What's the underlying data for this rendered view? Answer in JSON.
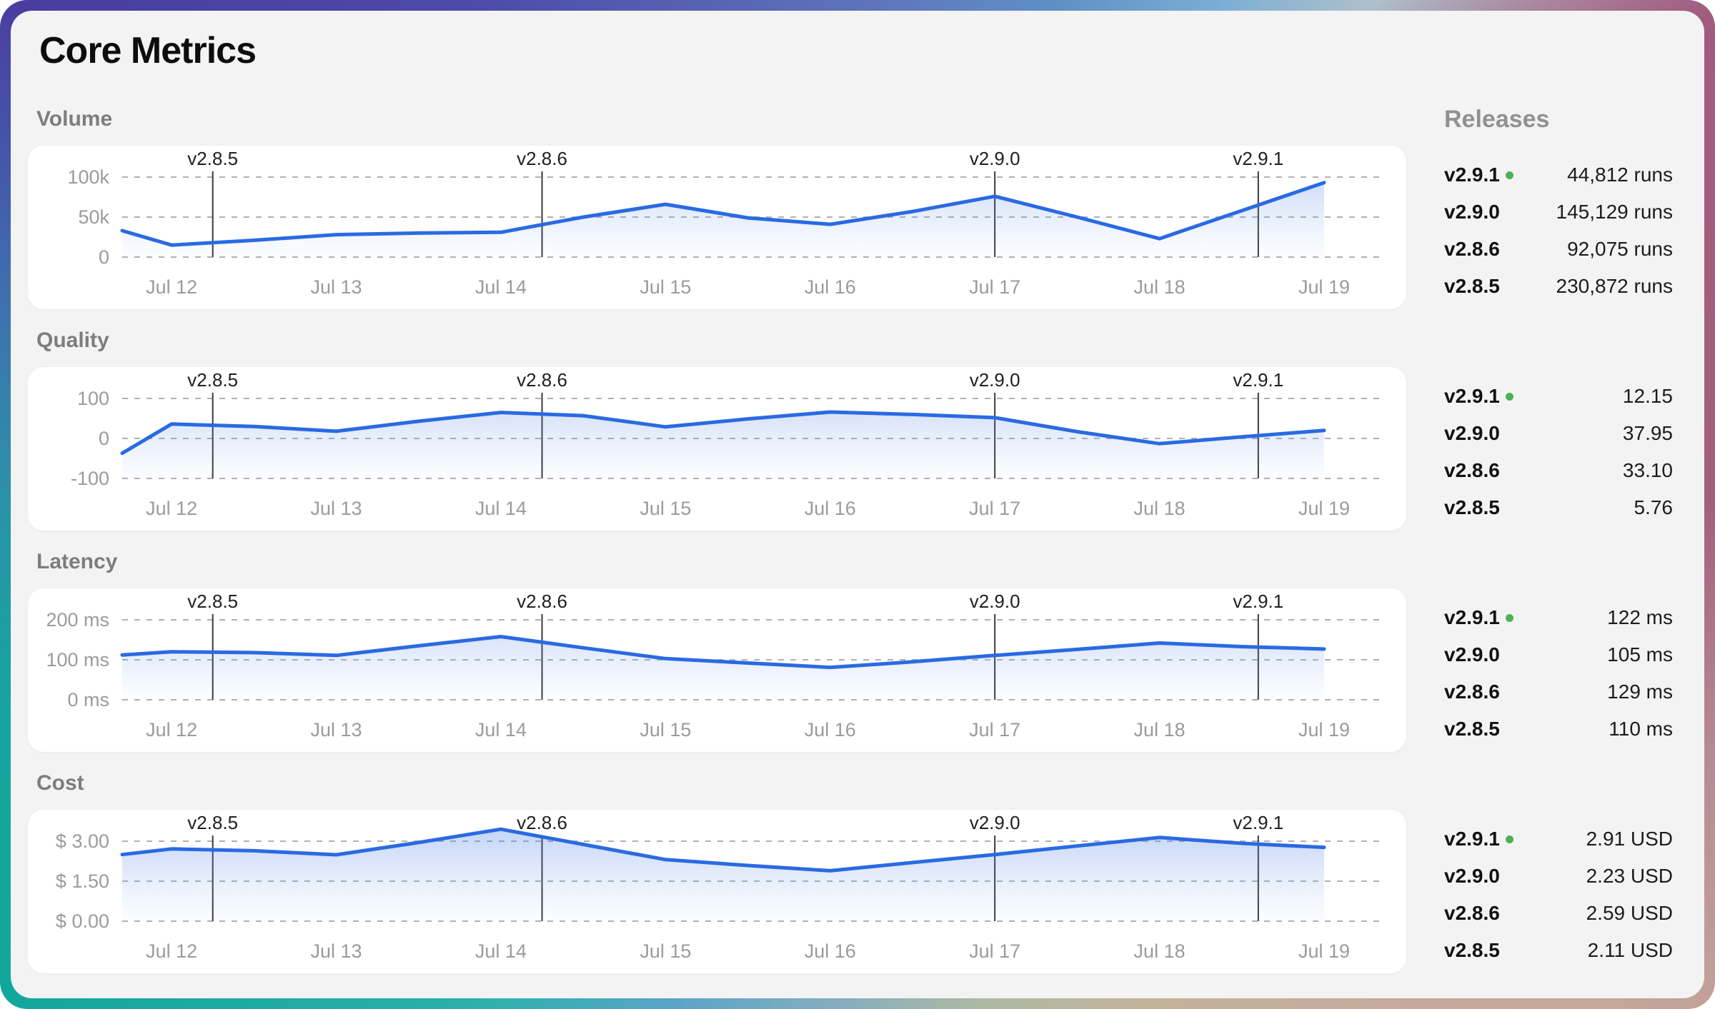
{
  "title": "Core Metrics",
  "releases_header": "Releases",
  "day_labels": [
    "Jul 12",
    "Jul 13",
    "Jul 14",
    "Jul 15",
    "Jul 16",
    "Jul 17",
    "Jul 18",
    "Jul 19"
  ],
  "release_markers": [
    {
      "label": "v2.8.5",
      "day": 0.25
    },
    {
      "label": "v2.8.6",
      "day": 2.25
    },
    {
      "label": "v2.9.0",
      "day": 5.0
    },
    {
      "label": "v2.9.1",
      "day": 6.6
    }
  ],
  "colors": {
    "line": "#2a6ae2",
    "area_top": "rgba(64,118,226,0.30)",
    "area_bottom": "rgba(120,160,240,0.02)",
    "grid": "#b0b0b2",
    "marker_line": "#3a3a3a",
    "latest_dot": "#4db153"
  },
  "chart_data": [
    {
      "type": "area",
      "title": "Volume",
      "unit": "runs",
      "ylim": [
        0,
        100000
      ],
      "y_ticks": [
        {
          "label": "100k",
          "value": 100000
        },
        {
          "label": "50k",
          "value": 50000
        },
        {
          "label": "0",
          "value": 0
        }
      ],
      "x_days": [
        -0.3,
        0,
        0.5,
        1,
        1.5,
        2,
        2.5,
        3,
        3.5,
        4,
        4.5,
        5,
        5.5,
        6,
        6.5,
        7
      ],
      "values": [
        33000,
        15000,
        21000,
        28000,
        30000,
        31000,
        50000,
        66000,
        49000,
        41000,
        57000,
        76000,
        50000,
        23000,
        58000,
        93000
      ],
      "panel": [
        {
          "version": "v2.9.1",
          "value": "44,812 runs",
          "latest": true
        },
        {
          "version": "v2.9.0",
          "value": "145,129 runs",
          "latest": false
        },
        {
          "version": "v2.8.6",
          "value": "92,075 runs",
          "latest": false
        },
        {
          "version": "v2.8.5",
          "value": "230,872 runs",
          "latest": false
        }
      ]
    },
    {
      "type": "area",
      "title": "Quality",
      "unit": "",
      "ylim": [
        -100,
        100
      ],
      "y_ticks": [
        {
          "label": "100",
          "value": 100
        },
        {
          "label": "0",
          "value": 0
        },
        {
          "label": "-100",
          "value": -100
        }
      ],
      "x_days": [
        -0.3,
        0,
        0.5,
        1,
        1.5,
        2,
        2.5,
        3,
        3.5,
        4,
        4.5,
        5,
        5.5,
        6,
        6.5,
        7
      ],
      "values": [
        -37,
        36,
        30,
        18,
        43,
        65,
        57,
        29,
        49,
        66,
        60,
        52,
        17,
        -13,
        4,
        20
      ],
      "panel": [
        {
          "version": "v2.9.1",
          "value": "12.15",
          "latest": true
        },
        {
          "version": "v2.9.0",
          "value": "37.95",
          "latest": false
        },
        {
          "version": "v2.8.6",
          "value": "33.10",
          "latest": false
        },
        {
          "version": "v2.8.5",
          "value": "5.76",
          "latest": false
        }
      ]
    },
    {
      "type": "area",
      "title": "Latency",
      "unit": "ms",
      "ylim": [
        0,
        200
      ],
      "y_ticks": [
        {
          "label": "200 ms",
          "value": 200
        },
        {
          "label": "100 ms",
          "value": 100
        },
        {
          "label": "0 ms",
          "value": 0
        }
      ],
      "x_days": [
        -0.3,
        0,
        0.5,
        1,
        1.5,
        2,
        2.5,
        3,
        3.5,
        4,
        4.5,
        5,
        5.5,
        6,
        6.5,
        7
      ],
      "values": [
        112,
        120,
        118,
        111,
        135,
        158,
        130,
        103,
        92,
        81,
        95,
        111,
        126,
        142,
        133,
        127
      ],
      "panel": [
        {
          "version": "v2.9.1",
          "value": "122 ms",
          "latest": true
        },
        {
          "version": "v2.9.0",
          "value": "105 ms",
          "latest": false
        },
        {
          "version": "v2.8.6",
          "value": "129 ms",
          "latest": false
        },
        {
          "version": "v2.8.5",
          "value": "110 ms",
          "latest": false
        }
      ]
    },
    {
      "type": "area",
      "title": "Cost",
      "unit": "USD",
      "ylim": [
        0,
        3
      ],
      "y_ticks": [
        {
          "label": "$ 3.00",
          "value": 3.0
        },
        {
          "label": "$ 1.50",
          "value": 1.5
        },
        {
          "label": "$ 0.00",
          "value": 0.0
        }
      ],
      "x_days": [
        -0.3,
        0,
        0.5,
        1,
        1.5,
        2,
        2.5,
        3,
        3.5,
        4,
        4.5,
        5,
        5.5,
        6,
        6.5,
        7
      ],
      "values": [
        2.5,
        2.71,
        2.64,
        2.49,
        2.95,
        3.45,
        2.88,
        2.31,
        2.09,
        1.89,
        2.2,
        2.5,
        2.82,
        3.14,
        2.92,
        2.77
      ],
      "panel": [
        {
          "version": "v2.9.1",
          "value": "2.91 USD",
          "latest": true
        },
        {
          "version": "v2.9.0",
          "value": "2.23 USD",
          "latest": false
        },
        {
          "version": "v2.8.6",
          "value": "2.59 USD",
          "latest": false
        },
        {
          "version": "v2.8.5",
          "value": "2.11 USD",
          "latest": false
        }
      ]
    }
  ]
}
